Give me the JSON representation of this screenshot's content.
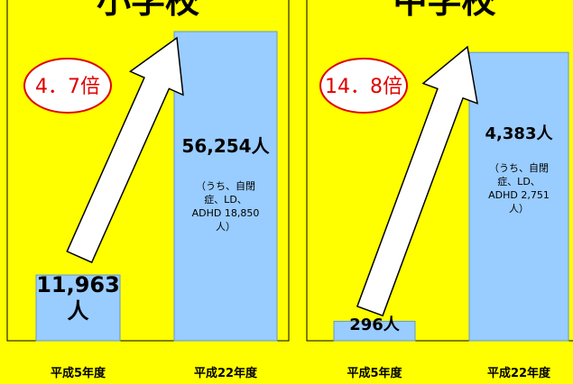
{
  "chart_data": [
    {
      "type": "bar",
      "title": "小学校",
      "categories": [
        "平成5年度",
        "平成22年度"
      ],
      "values": [
        11963,
        56254
      ],
      "value_labels": [
        "11,963人",
        "56,254人"
      ],
      "color": "#99ccff",
      "ylim": [
        0,
        62000
      ],
      "annotation": "4．7倍",
      "note": "（うち、自閉症、LD、ADHD 18,850人）"
    },
    {
      "type": "bar",
      "title": "中学校",
      "categories": [
        "平成5年度",
        "平成22年度"
      ],
      "values": [
        296,
        4383
      ],
      "value_labels": [
        "296人",
        "4,383人"
      ],
      "color": "#99ccff",
      "ylim": [
        0,
        5180
      ],
      "annotation": "14．8倍",
      "note": "（うち、自閉症、LD、ADHD 2,751人）"
    }
  ]
}
